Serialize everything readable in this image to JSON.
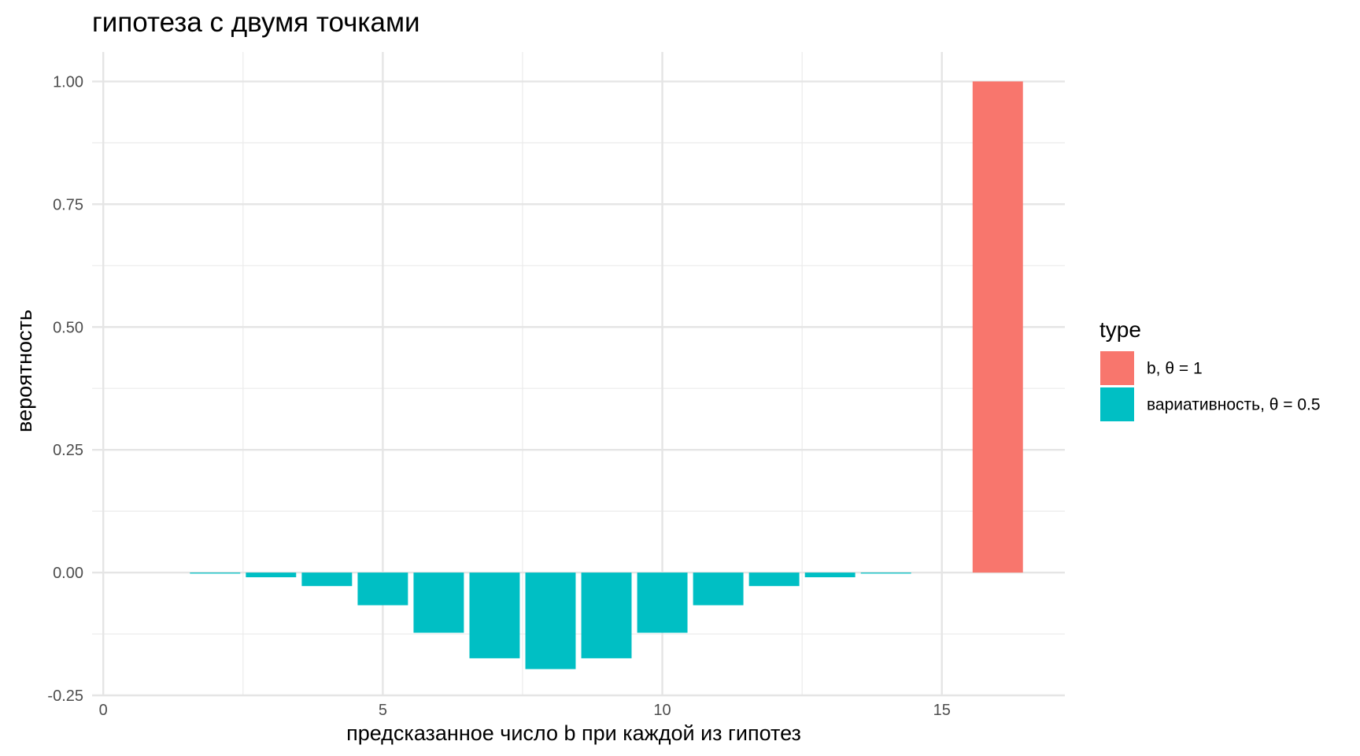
{
  "chart_data": {
    "type": "bar",
    "title": "гипотеза с двумя точками",
    "xlabel": "предсказанное число b при каждой из гипотез",
    "ylabel": "вероятность",
    "xlim": [
      -0.2,
      17.2
    ],
    "ylim": [
      -0.25,
      1.06
    ],
    "x_ticks": [
      {
        "value": 0,
        "label": "0"
      },
      {
        "value": 5,
        "label": "5"
      },
      {
        "value": 10,
        "label": "10"
      },
      {
        "value": 15,
        "label": "15"
      }
    ],
    "y_ticks": [
      {
        "value": -0.25,
        "label": "-0.25"
      },
      {
        "value": 0.0,
        "label": "0.00"
      },
      {
        "value": 0.25,
        "label": "0.25"
      },
      {
        "value": 0.5,
        "label": "0.50"
      },
      {
        "value": 0.75,
        "label": "0.75"
      },
      {
        "value": 1.0,
        "label": "1.00"
      }
    ],
    "grid": true,
    "legend": {
      "title": "type",
      "position": "right"
    },
    "series": [
      {
        "name": "b, θ = 1",
        "color": "#F8766D",
        "x": [
          16
        ],
        "values": [
          1.0
        ]
      },
      {
        "name": "вариативность, θ = 0.5",
        "color": "#00BFC4",
        "x": [
          2,
          3,
          4,
          5,
          6,
          7,
          8,
          9,
          10,
          11,
          12,
          13,
          14
        ],
        "values": [
          -0.002,
          -0.0095,
          -0.0275,
          -0.0665,
          -0.1225,
          -0.1745,
          -0.1965,
          -0.1745,
          -0.1225,
          -0.0665,
          -0.0275,
          -0.0095,
          -0.002
        ]
      }
    ]
  }
}
